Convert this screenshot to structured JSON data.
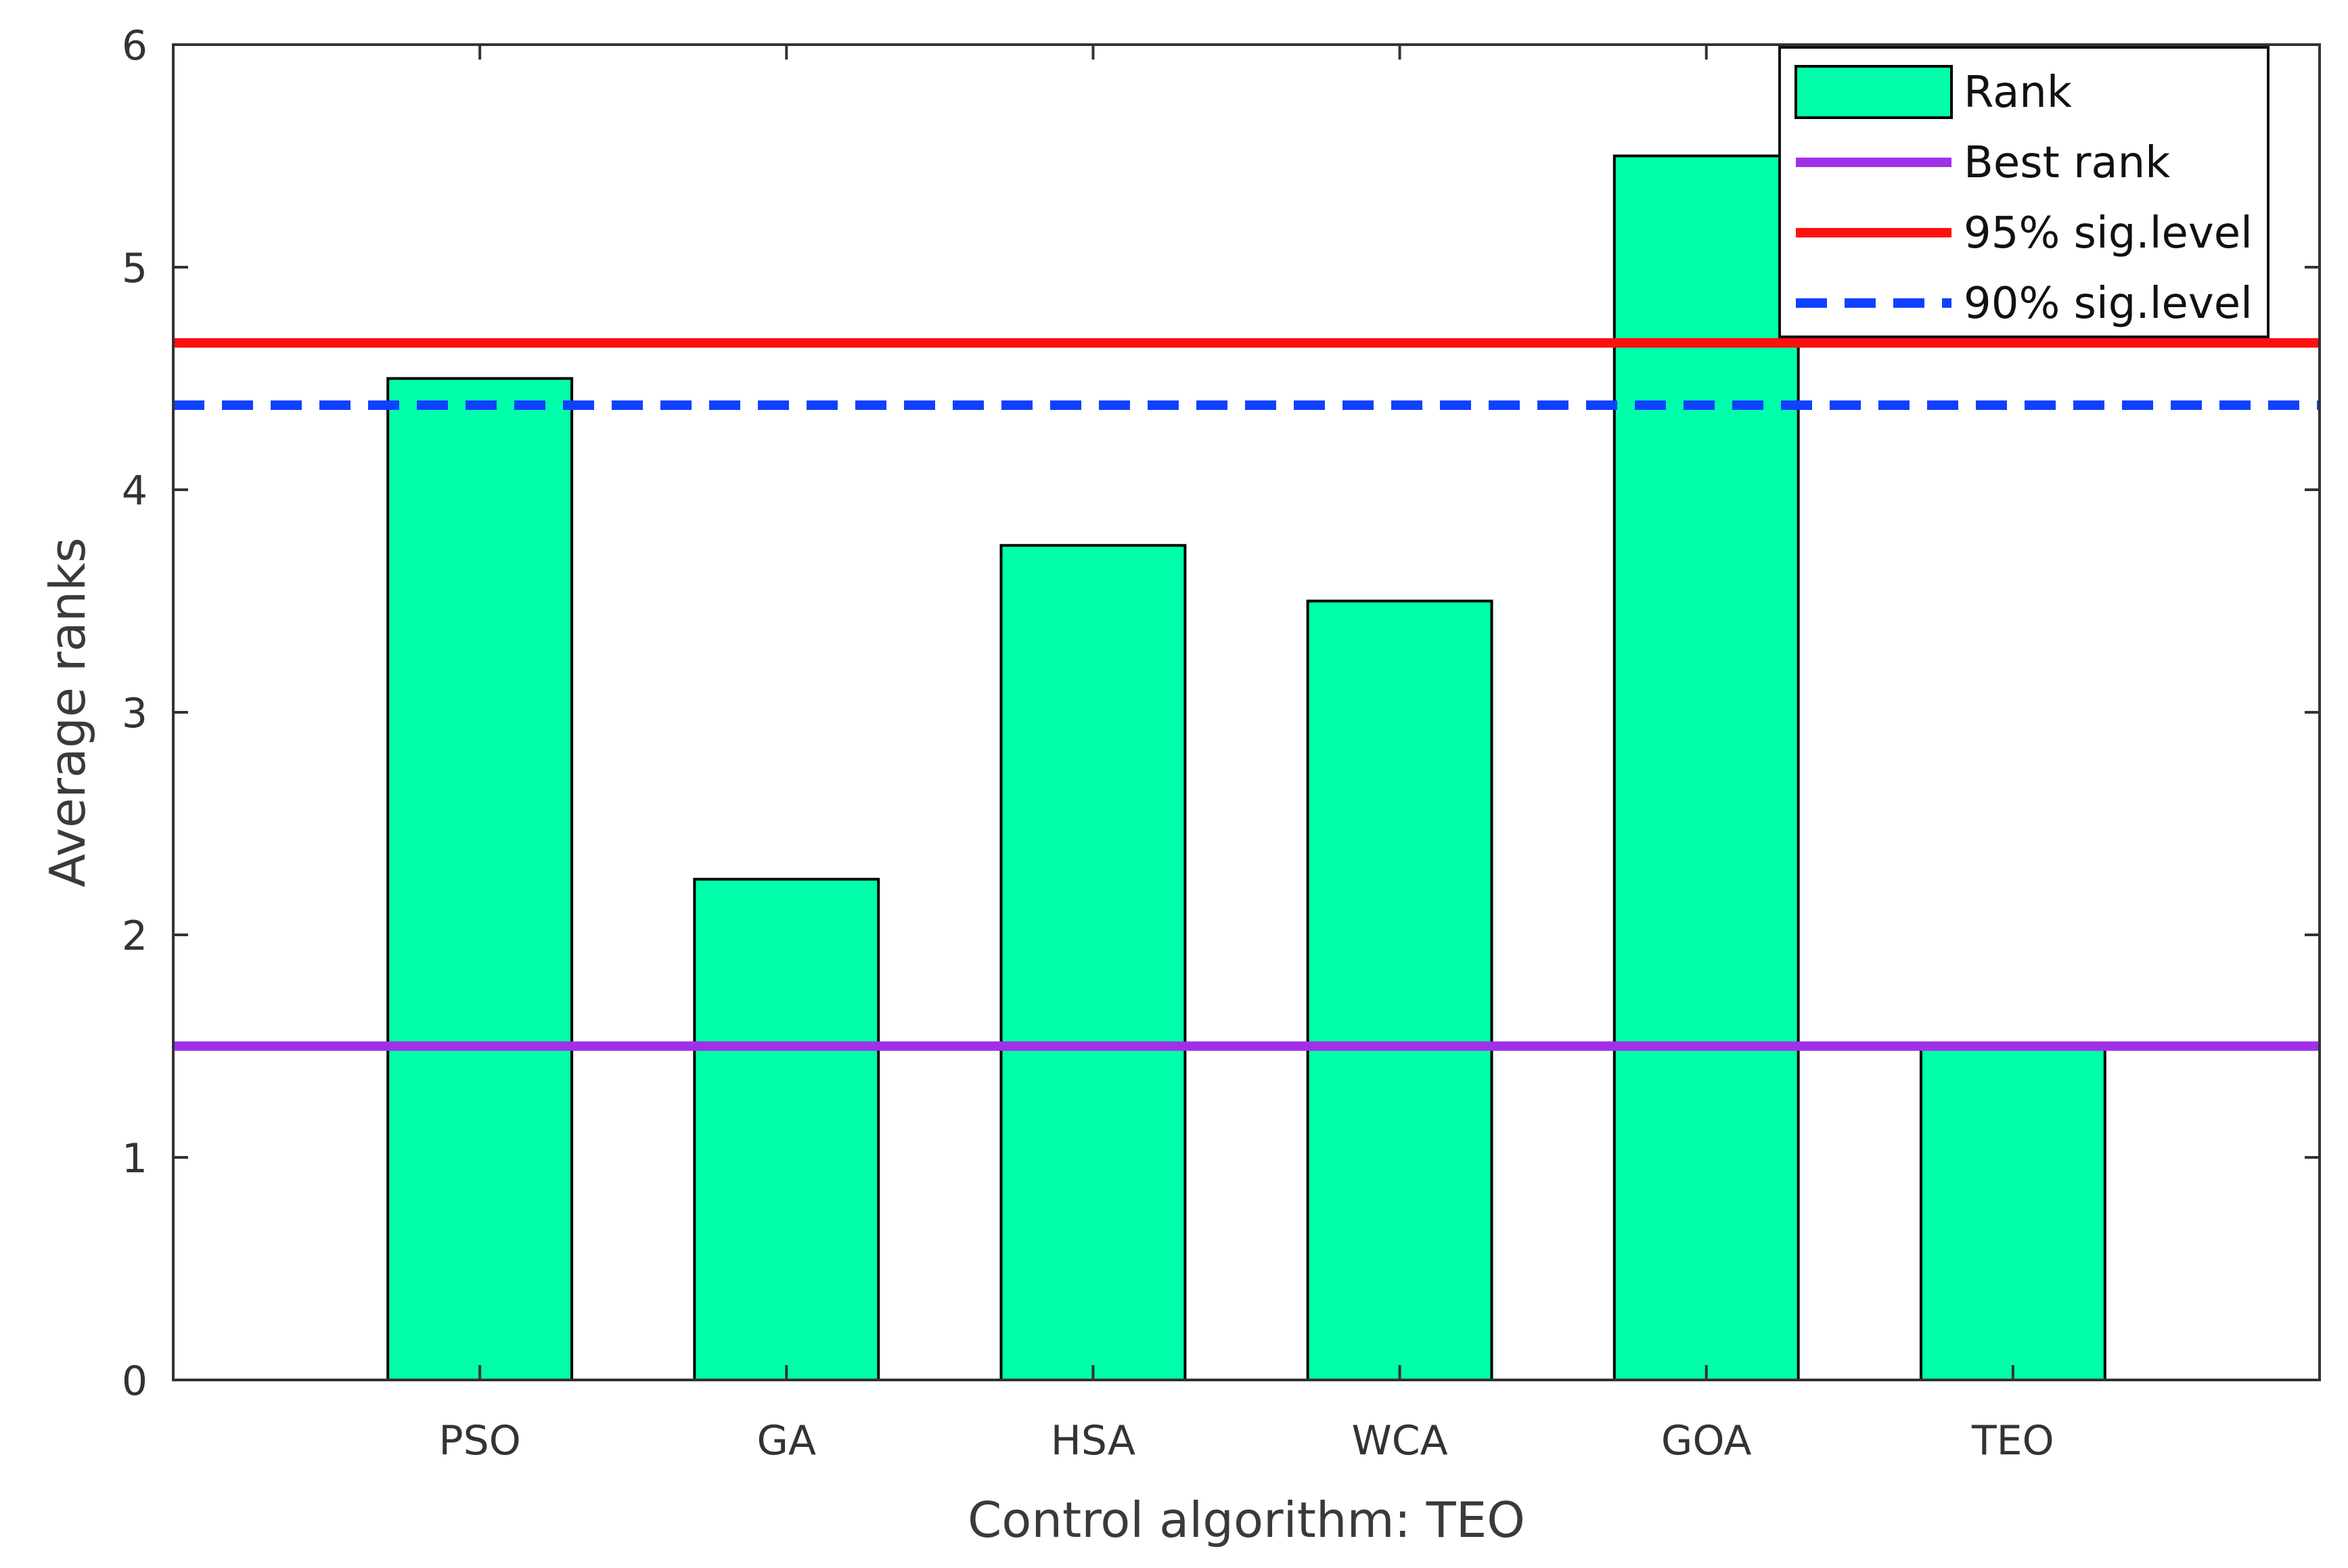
{
  "chart_data": {
    "type": "bar",
    "categories": [
      "PSO",
      "GA",
      "HSA",
      "WCA",
      "GOA",
      "TEO"
    ],
    "values": [
      4.5,
      2.25,
      3.75,
      3.5,
      5.5,
      1.5
    ],
    "xlabel": "Control algorithm: TEO",
    "ylabel": "Average ranks",
    "ylim": [
      0,
      6
    ],
    "yticks": [
      "0",
      "1",
      "2",
      "3",
      "4",
      "5",
      "6"
    ],
    "xlim": [
      0,
      7
    ],
    "bar_color": "#00FFAA",
    "reference_lines": [
      {
        "name": "Best rank",
        "value": 1.5,
        "color": "#A030E8",
        "style": "solid"
      },
      {
        "name": "95% sig.level",
        "value": 4.66,
        "color": "#FF1010",
        "style": "solid"
      },
      {
        "name": "90% sig.level",
        "value": 4.38,
        "color": "#1040FF",
        "style": "dashed"
      }
    ],
    "legend": {
      "placement": "top-right",
      "entries": [
        "Rank",
        "Best rank",
        "95% sig.level",
        "90% sig.level"
      ]
    }
  }
}
